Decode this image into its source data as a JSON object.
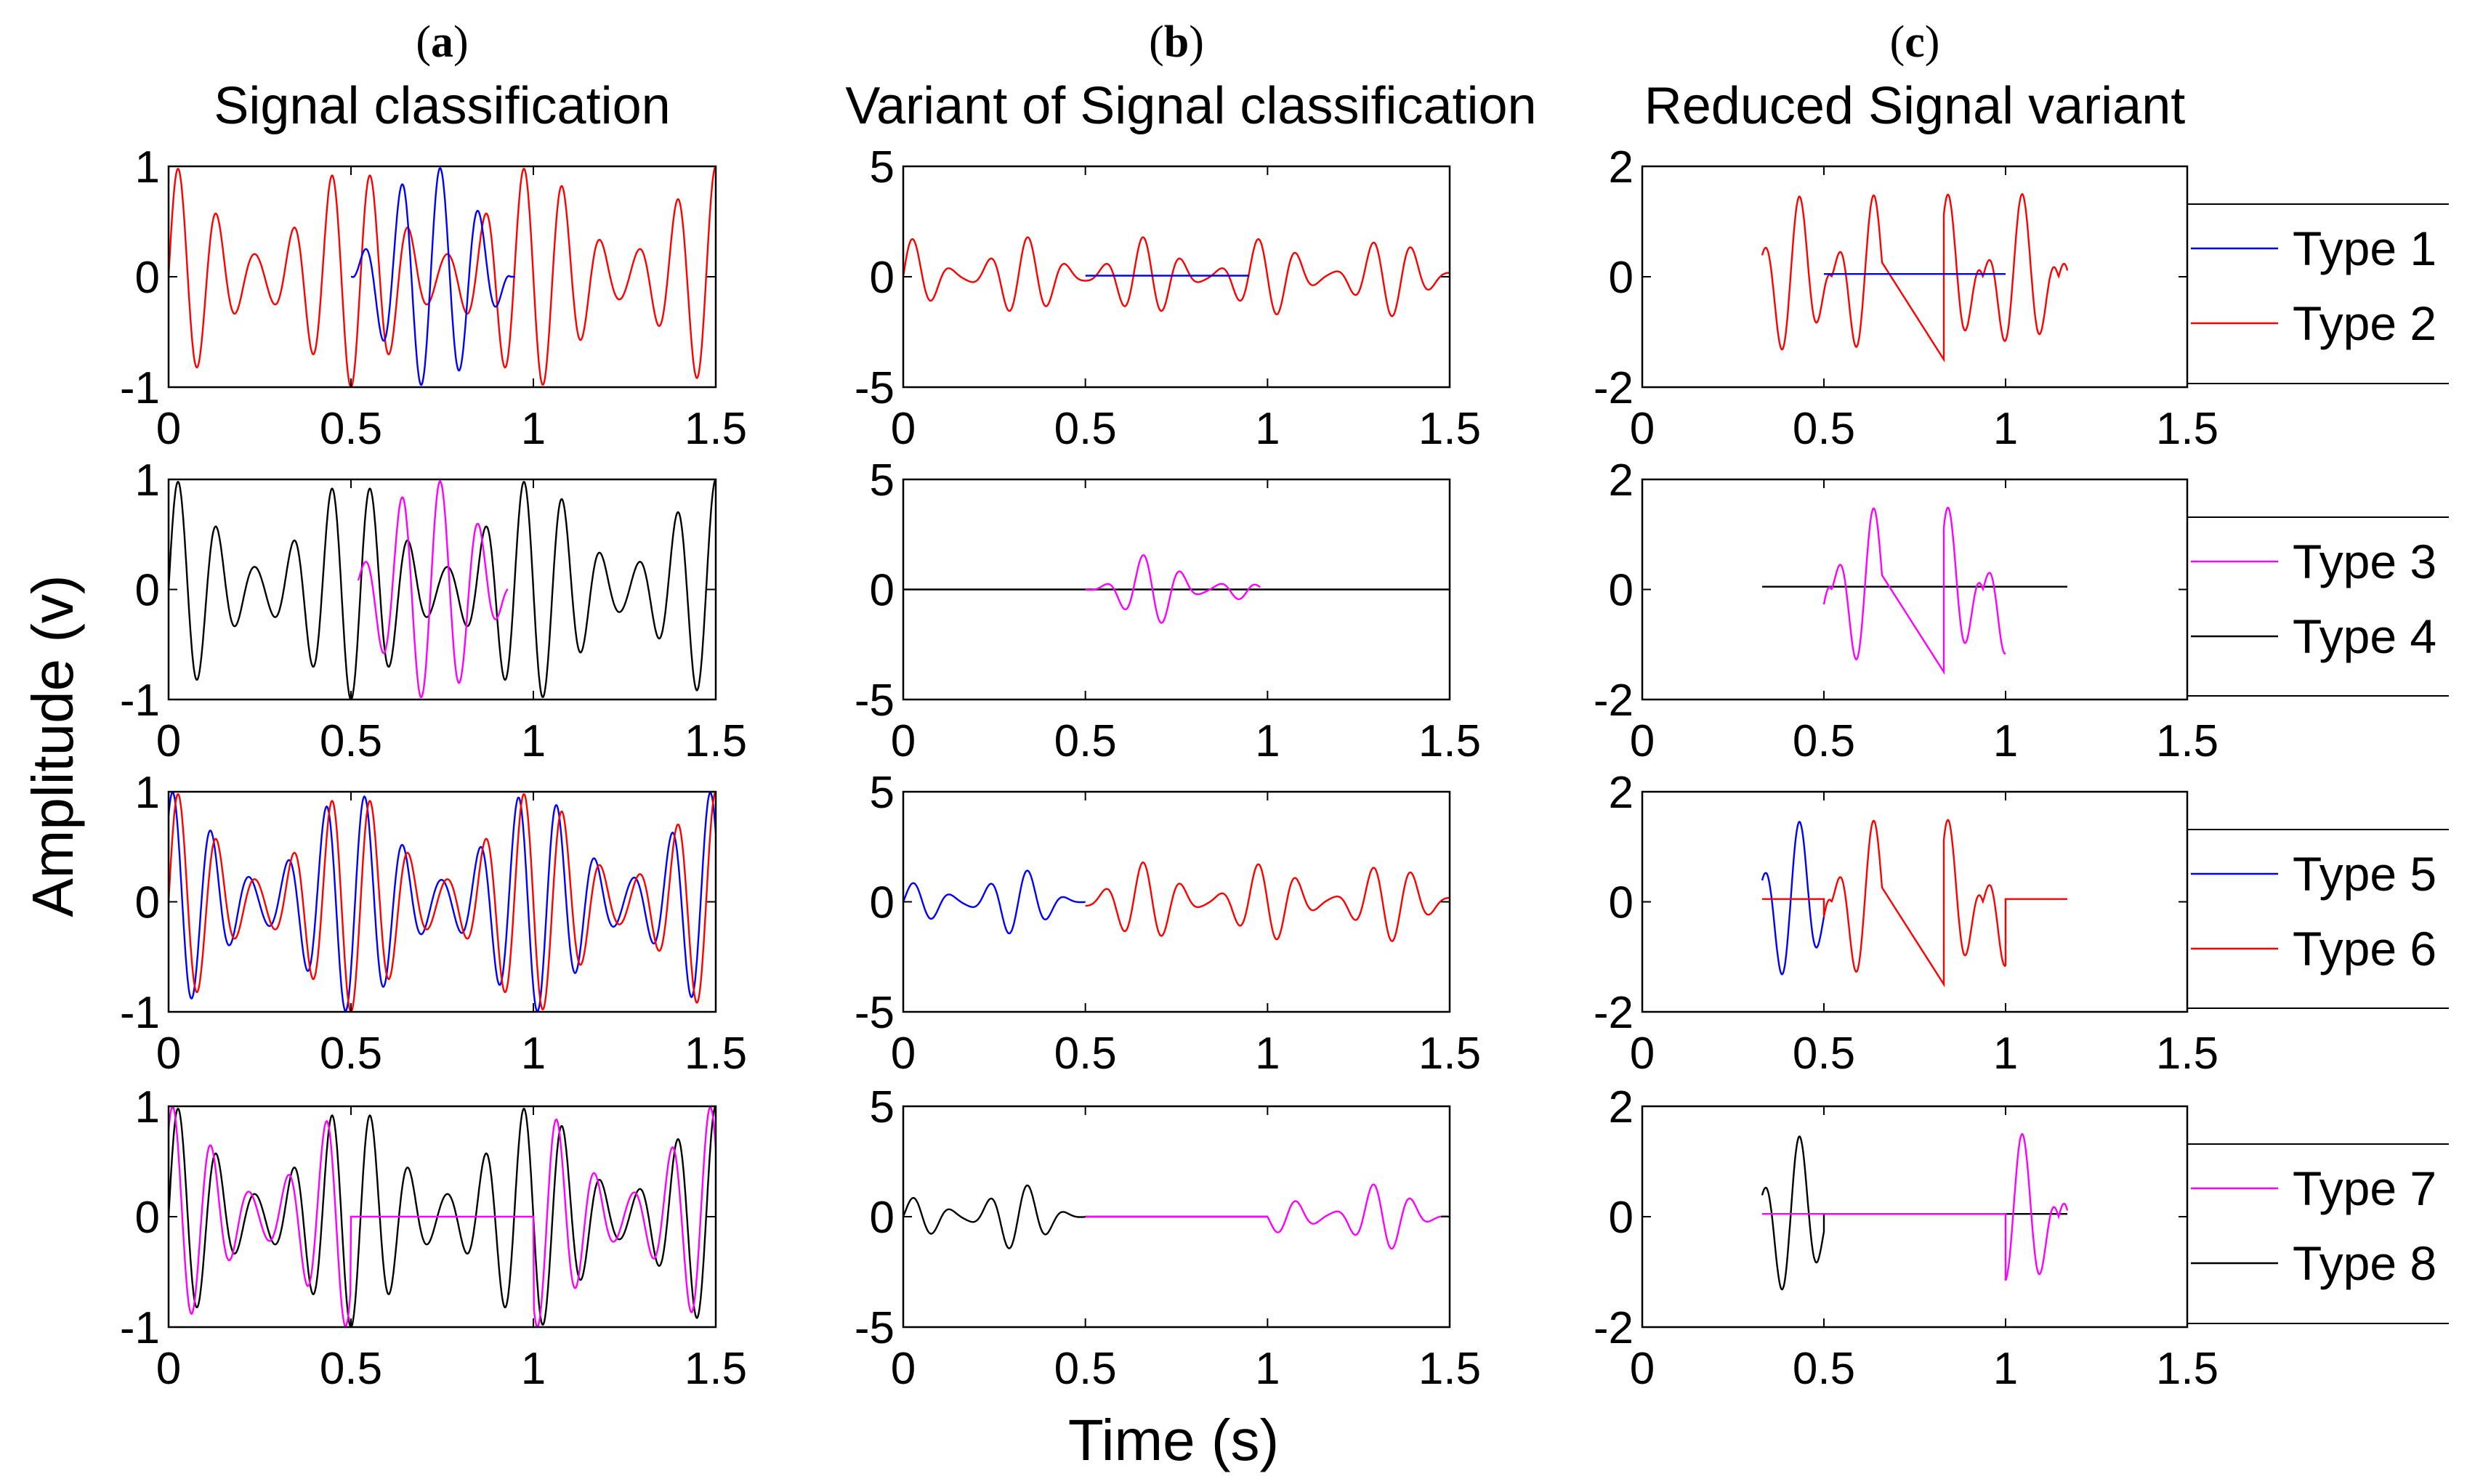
{
  "chart_data": {
    "type": "line",
    "ylabel": "Amplitude (v)",
    "xlabel": "Time (s)",
    "columns": [
      {
        "letter": "a",
        "title": "Signal classification",
        "xlim": [
          0,
          1.5
        ],
        "ylim": [
          -1,
          1
        ],
        "yticks": [
          "1",
          "0",
          "-1"
        ],
        "ytick_values": [
          1,
          0,
          -1
        ]
      },
      {
        "letter": "b",
        "title": "Variant of  Signal classification",
        "xlim": [
          0,
          1.5
        ],
        "ylim": [
          -5,
          5
        ],
        "yticks": [
          "5",
          "0",
          "-5"
        ],
        "ytick_values": [
          5,
          0,
          -5
        ]
      },
      {
        "letter": "c",
        "title": "Reduced  Signal variant",
        "xlim": [
          0,
          1.5
        ],
        "ylim": [
          -2,
          2
        ],
        "yticks": [
          "2",
          "0",
          "-2"
        ],
        "ytick_values": [
          2,
          0,
          -2
        ]
      }
    ],
    "xticks": [
      "0",
      "0.5",
      "1",
      "1.5"
    ],
    "xtick_values": [
      0,
      0.5,
      1,
      1.5
    ],
    "rows": [
      {
        "legend": [
          {
            "name": "Type 1",
            "color": "#0000ff"
          },
          {
            "name": "Type 2",
            "color": "#ff0000"
          }
        ]
      },
      {
        "legend": [
          {
            "name": "Type 3",
            "color": "#ff00ff"
          },
          {
            "name": "Type 4",
            "color": "#000000"
          }
        ]
      },
      {
        "legend": [
          {
            "name": "Type 5",
            "color": "#0000ff"
          },
          {
            "name": "Type 6",
            "color": "#ff0000"
          }
        ]
      },
      {
        "legend": [
          {
            "name": "Type 7",
            "color": "#ff00ff"
          },
          {
            "name": "Type 8",
            "color": "#000000"
          }
        ]
      }
    ]
  }
}
